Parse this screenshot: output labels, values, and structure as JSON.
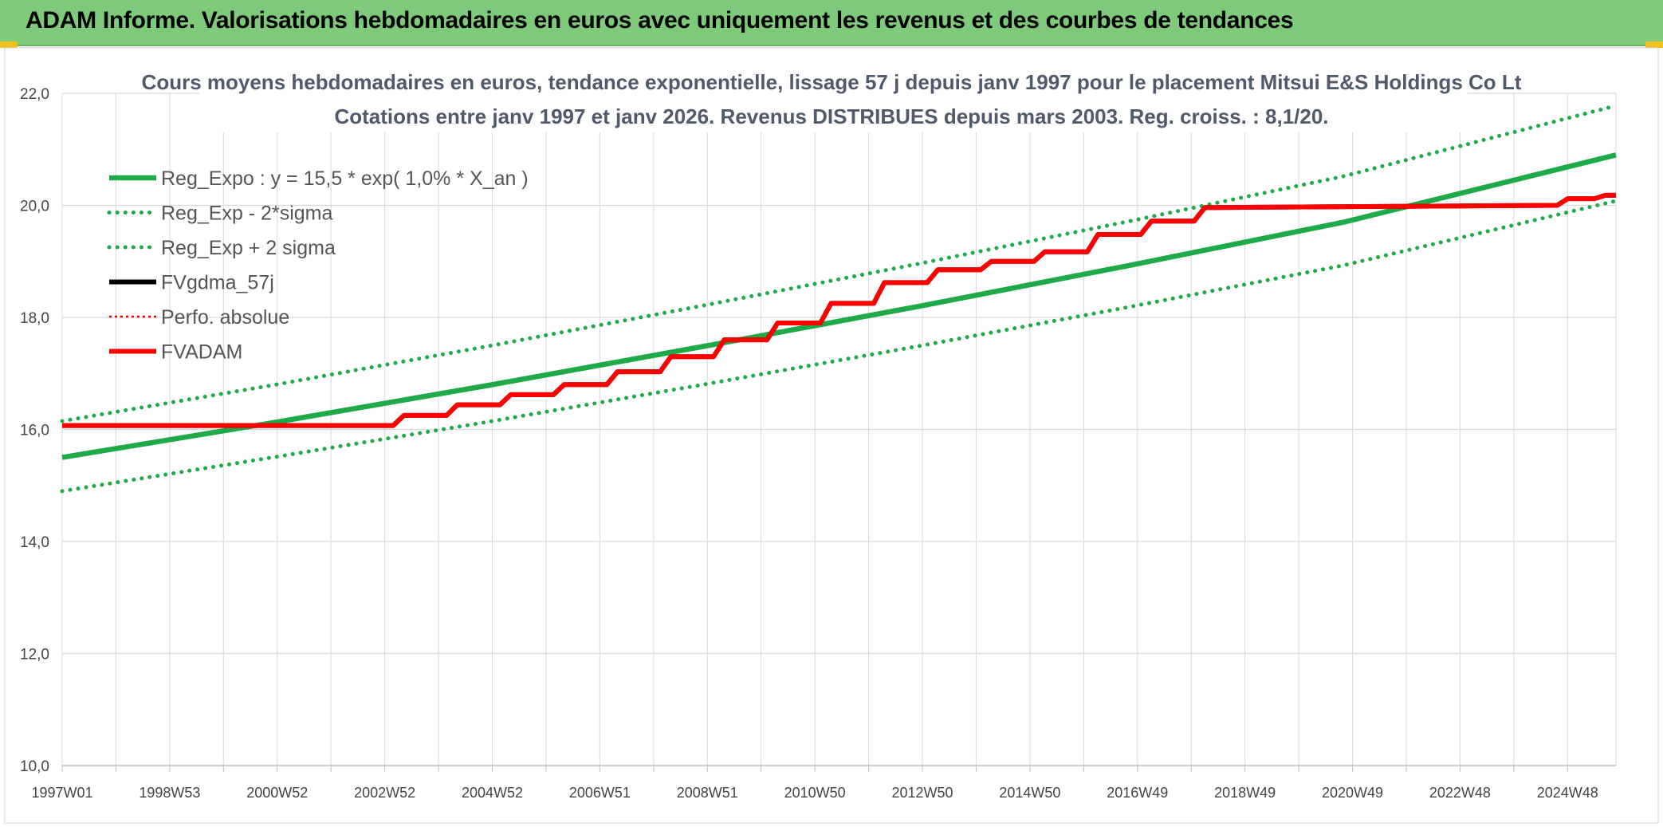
{
  "header": {
    "title": "ADAM Informe. Valorisations hebdomadaires en euros avec uniquement les revenus et des courbes de tendances"
  },
  "colors": {
    "header_bg": "#7ec97a",
    "reg_green": "#1faa4a",
    "sigma_green": "#1faa4a",
    "black": "#000000",
    "red": "#ff0000"
  },
  "chart_data": {
    "type": "line",
    "title": "Cours moyens hebdomadaires en euros, tendance exponentielle, lissage 57 j depuis janv 1997 pour le placement Mitsui E&S Holdings Co Lt",
    "subtitle": "Cotations entre janv 1997 et janv 2026. Revenus DISTRIBUES depuis mars 2003. Reg. croiss. : 8,1/20.",
    "ylim": [
      10,
      22
    ],
    "y_ticks": [
      "10,0",
      "12,0",
      "14,0",
      "16,0",
      "18,0",
      "20,0",
      "22,0"
    ],
    "x_ticks": [
      "1997W01",
      "1998W53",
      "2000W52",
      "2002W52",
      "2004W52",
      "2006W51",
      "2008W51",
      "2010W50",
      "2012W50",
      "2014W50",
      "2016W49",
      "2018W49",
      "2020W49",
      "2022W48",
      "2024W48"
    ],
    "xlim": [
      1997.0,
      2026.1
    ],
    "grid": true,
    "legend_position": "top-left",
    "series": [
      {
        "name": "Reg_Expo : y = 15,5 * exp( 1,0% *  X_an )",
        "style": "solid-thick",
        "color": "#1faa4a",
        "x": [
          1997.0,
          2001.0,
          2005.0,
          2009.0,
          2013.0,
          2017.0,
          2021.0,
          2026.1
        ],
        "y": [
          15.5,
          16.13,
          16.79,
          17.48,
          18.19,
          18.93,
          19.7,
          20.9
        ]
      },
      {
        "name": "Reg_Exp - 2*sigma",
        "style": "dotted",
        "color": "#1faa4a",
        "x": [
          1997.0,
          2001.0,
          2005.0,
          2009.0,
          2013.0,
          2017.0,
          2021.0,
          2026.1
        ],
        "y": [
          14.9,
          15.51,
          16.14,
          16.8,
          17.48,
          18.19,
          18.93,
          20.08
        ]
      },
      {
        "name": "Reg_Exp + 2 sigma",
        "style": "dotted",
        "color": "#1faa4a",
        "x": [
          1997.0,
          2001.0,
          2005.0,
          2009.0,
          2013.0,
          2017.0,
          2021.0,
          2026.1
        ],
        "y": [
          16.15,
          16.8,
          17.49,
          18.21,
          18.95,
          19.72,
          20.52,
          21.78
        ]
      },
      {
        "name": "FVgdma_57j",
        "style": "solid",
        "color": "#000000",
        "x": [
          1997.0,
          2003.2,
          2003.4,
          2004.2,
          2004.4,
          2005.2,
          2005.4,
          2006.2,
          2006.4,
          2007.2,
          2007.4,
          2008.2,
          2008.4,
          2009.2,
          2009.4,
          2010.2,
          2010.4,
          2011.2,
          2011.4,
          2012.2,
          2012.4,
          2013.2,
          2013.4,
          2014.2,
          2014.4,
          2015.2,
          2015.4,
          2016.2,
          2016.4,
          2017.2,
          2017.4,
          2018.2,
          2018.4,
          2025.0,
          2025.2,
          2025.7,
          2025.9,
          2026.1
        ],
        "y": [
          16.07,
          16.07,
          16.25,
          16.25,
          16.44,
          16.44,
          16.62,
          16.62,
          16.8,
          16.8,
          17.03,
          17.03,
          17.3,
          17.3,
          17.6,
          17.6,
          17.9,
          17.9,
          18.25,
          18.25,
          18.62,
          18.62,
          18.85,
          18.85,
          19.0,
          19.0,
          19.17,
          19.17,
          19.48,
          19.48,
          19.72,
          19.72,
          19.96,
          20.0,
          20.12,
          20.12,
          20.18,
          20.18
        ]
      },
      {
        "name": "Perfo. absolue",
        "style": "dotted",
        "color": "#ff0000",
        "x": [
          1997.0,
          2003.2,
          2003.4,
          2004.2,
          2004.4,
          2005.2,
          2005.4,
          2006.2,
          2006.4,
          2007.2,
          2007.4,
          2008.2,
          2008.4,
          2009.2,
          2009.4,
          2010.2,
          2010.4,
          2011.2,
          2011.4,
          2012.2,
          2012.4,
          2013.2,
          2013.4,
          2014.2,
          2014.4,
          2015.2,
          2015.4,
          2016.2,
          2016.4,
          2017.2,
          2017.4,
          2018.2,
          2018.4,
          2025.0,
          2025.2,
          2025.7,
          2025.9,
          2026.1
        ],
        "y": [
          16.07,
          16.07,
          16.25,
          16.25,
          16.44,
          16.44,
          16.62,
          16.62,
          16.8,
          16.8,
          17.03,
          17.03,
          17.3,
          17.3,
          17.6,
          17.6,
          17.9,
          17.9,
          18.25,
          18.25,
          18.62,
          18.62,
          18.85,
          18.85,
          19.0,
          19.0,
          19.17,
          19.17,
          19.48,
          19.48,
          19.72,
          19.72,
          19.96,
          20.0,
          20.12,
          20.12,
          20.18,
          20.18
        ]
      },
      {
        "name": "FVADAM",
        "style": "solid-thick",
        "color": "#ff0000",
        "x": [
          1997.0,
          2003.2,
          2003.4,
          2004.2,
          2004.4,
          2005.2,
          2005.4,
          2006.2,
          2006.4,
          2007.2,
          2007.4,
          2008.2,
          2008.4,
          2009.2,
          2009.4,
          2010.2,
          2010.4,
          2011.2,
          2011.4,
          2012.2,
          2012.4,
          2013.2,
          2013.4,
          2014.2,
          2014.4,
          2015.2,
          2015.4,
          2016.2,
          2016.4,
          2017.2,
          2017.4,
          2018.2,
          2018.4,
          2025.0,
          2025.2,
          2025.7,
          2025.9,
          2026.1
        ],
        "y": [
          16.07,
          16.07,
          16.25,
          16.25,
          16.44,
          16.44,
          16.62,
          16.62,
          16.8,
          16.8,
          17.03,
          17.03,
          17.3,
          17.3,
          17.6,
          17.6,
          17.9,
          17.9,
          18.25,
          18.25,
          18.62,
          18.62,
          18.85,
          18.85,
          19.0,
          19.0,
          19.17,
          19.17,
          19.48,
          19.48,
          19.72,
          19.72,
          19.96,
          20.0,
          20.12,
          20.12,
          20.18,
          20.18
        ]
      }
    ]
  }
}
